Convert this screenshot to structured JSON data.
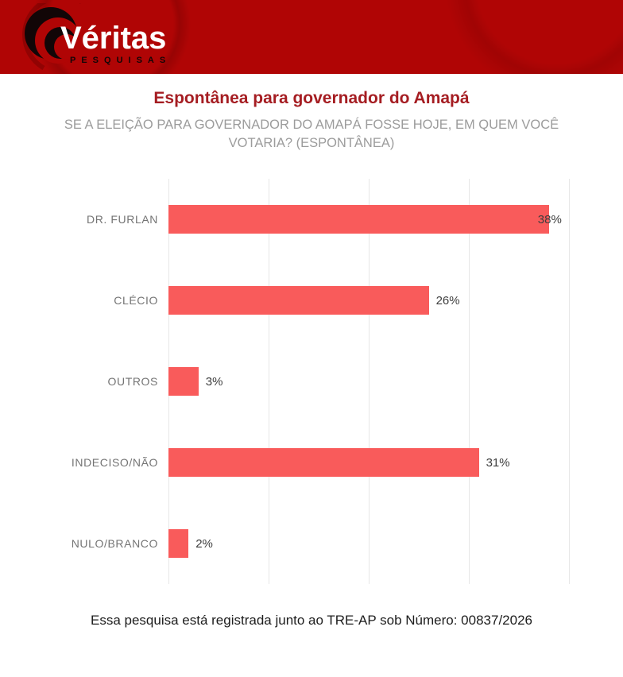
{
  "brand": {
    "name": "Véritas",
    "tagline": "PESQUISAS",
    "header_bg": "#b00505",
    "logo_ink": "#120607"
  },
  "header_title": {
    "text": "Espontânea para governador do Amapá",
    "color": "#a51d22"
  },
  "subtitle": {
    "text": "SE A ELEIÇÃO PARA GOVERNADOR DO AMAPÁ FOSSE HOJE, EM QUEM VOCÊ VOTARIA? (ESPONTÂNEA)"
  },
  "chart_data": {
    "type": "bar",
    "orientation": "horizontal",
    "title": "Espontânea para governador do Amapá",
    "categories": [
      "DR. FURLAN",
      "CLÉCIO",
      "OUTROS",
      "INDECISO/NÃO",
      "NULO/BRANCO"
    ],
    "values": [
      38,
      26,
      3,
      31,
      2
    ],
    "value_labels": [
      "38%",
      "26%",
      "3%",
      "31%",
      "2%"
    ],
    "xlabel": "",
    "ylabel": "",
    "xlim": [
      0,
      40
    ],
    "grid_ticks": [
      0,
      10,
      20,
      30,
      40
    ],
    "grid": true,
    "legend": false,
    "bar_color": "#f95b5b",
    "grid_color": "#e7e7e7",
    "category_label_color": "#747474",
    "value_label_color": "#3d3d3d"
  },
  "footer": {
    "text": "Essa pesquisa está registrada junto ao TRE-AP sob Número: 00837/2026"
  }
}
